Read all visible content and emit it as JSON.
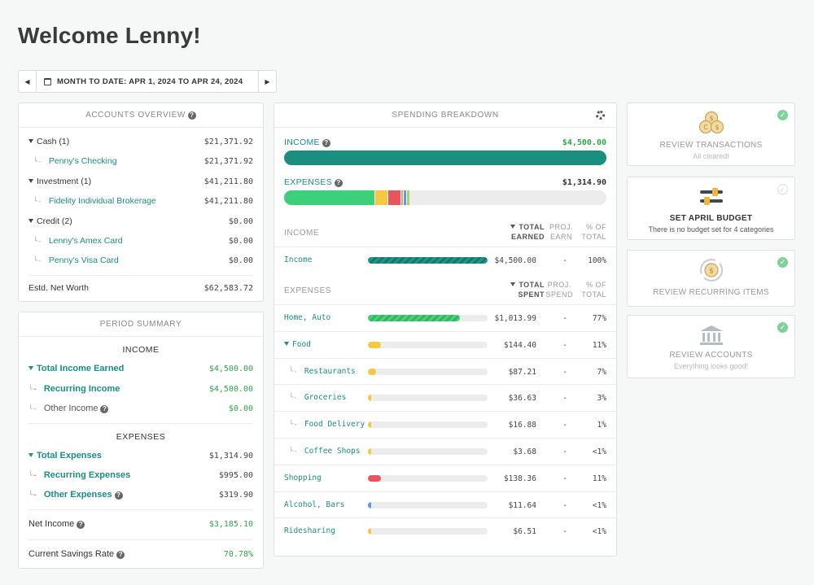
{
  "greeting": "Welcome Lenny!",
  "date_range": "MONTH TO DATE: APR 1, 2024 TO APR 24, 2024",
  "accounts": {
    "title": "ACCOUNTS OVERVIEW",
    "rows": [
      {
        "label": "Cash (1)",
        "value": "$21,371.92"
      },
      {
        "label": "Penny's Checking",
        "value": "$21,371.92"
      },
      {
        "label": "Investment (1)",
        "value": "$41,211.80"
      },
      {
        "label": "Fidelity Individual Brokerage",
        "value": "$41,211.80"
      },
      {
        "label": "Credit (2)",
        "value": "$0.00"
      },
      {
        "label": "Lenny's Amex Card",
        "value": "$0.00"
      },
      {
        "label": "Penny's Visa Card",
        "value": "$0.00"
      }
    ],
    "net_worth_label": "Estd. Net Worth",
    "net_worth_value": "$62,583.72"
  },
  "period": {
    "title": "PERIOD SUMMARY",
    "income_head": "INCOME",
    "total_income_label": "Total Income Earned",
    "total_income_value": "$4,500.00",
    "recurring_income_label": "Recurring Income",
    "recurring_income_value": "$4,500.00",
    "other_income_label": "Other Income",
    "other_income_value": "$0.00",
    "expenses_head": "EXPENSES",
    "total_expenses_label": "Total Expenses",
    "total_expenses_value": "$1,314.90",
    "recurring_expenses_label": "Recurring Expenses",
    "recurring_expenses_value": "$995.00",
    "other_expenses_label": "Other Expenses",
    "other_expenses_value": "$319.90",
    "net_income_label": "Net Income",
    "net_income_value": "$3,185.10",
    "savings_label": "Current Savings Rate",
    "savings_value": "70.78%"
  },
  "spending": {
    "title": "SPENDING BREAKDOWN",
    "income_label": "INCOME",
    "income_value": "$4,500.00",
    "expenses_label": "EXPENSES",
    "expenses_value": "$1,314.90",
    "expense_segments": [
      {
        "color": "#3ecf7a",
        "pct": 0.28
      },
      {
        "color": "#f5c842",
        "pct": 0.04
      },
      {
        "color": "#e8555e",
        "pct": 0.04
      },
      {
        "color": "#f39a6b",
        "pct": 0.01
      },
      {
        "color": "#5c9be0",
        "pct": 0.01
      },
      {
        "color": "#a9d65e",
        "pct": 0.01
      }
    ],
    "income_head": {
      "col1": "INCOME",
      "col2a": "TOTAL",
      "col2b": "EARNED",
      "col3a": "PROJ.",
      "col3b": "EARN",
      "col4a": "% OF",
      "col4b": "TOTAL"
    },
    "income_rows": [
      {
        "name": "Income",
        "amount": "$4,500.00",
        "proj": "-",
        "pct": "100%",
        "fill": 1.0,
        "color": "teal"
      }
    ],
    "expense_head": {
      "col1": "EXPENSES",
      "col2a": "TOTAL",
      "col2b": "SPENT",
      "col3a": "PROJ.",
      "col3b": "SPEND",
      "col4a": "% OF",
      "col4b": "TOTAL"
    },
    "expense_rows": [
      {
        "name": "Home, Auto",
        "amount": "$1,013.99",
        "proj": "-",
        "pct": "77%",
        "fill": 0.77,
        "color": "green"
      },
      {
        "name": "Food",
        "amount": "$144.40",
        "proj": "-",
        "pct": "11%",
        "fill": 0.11,
        "color": "#f5c842"
      },
      {
        "name": "Restaurants",
        "amount": "$87.21",
        "proj": "-",
        "pct": "7%",
        "fill": 0.07,
        "color": "#f5c842"
      },
      {
        "name": "Groceries",
        "amount": "$36.63",
        "proj": "-",
        "pct": "3%",
        "fill": 0.03,
        "color": "#f5c842"
      },
      {
        "name": "Food Delivery",
        "amount": "$16.88",
        "proj": "-",
        "pct": "1%",
        "fill": 0.01,
        "color": "#f5c842"
      },
      {
        "name": "Coffee Shops",
        "amount": "$3.68",
        "proj": "-",
        "pct": "<1%",
        "fill": 0.005,
        "color": "#f5c842"
      },
      {
        "name": "Shopping",
        "amount": "$138.36",
        "proj": "-",
        "pct": "11%",
        "fill": 0.11,
        "color": "#e8555e"
      },
      {
        "name": "Alcohol, Bars",
        "amount": "$11.64",
        "proj": "-",
        "pct": "<1%",
        "fill": 0.01,
        "color": "#5c9be0"
      },
      {
        "name": "Ridesharing",
        "amount": "$6.51",
        "proj": "-",
        "pct": "<1%",
        "fill": 0.005,
        "color": "#f5c842"
      }
    ]
  },
  "cards": [
    {
      "title": "REVIEW TRANSACTIONS",
      "sub": "All cleared!",
      "icon": "coins-icon",
      "done": true
    },
    {
      "title": "SET APRIL BUDGET",
      "sub": "There is no budget set for 4 categories",
      "icon": "sliders-icon",
      "done": false
    },
    {
      "title": "REVIEW RECURRING ITEMS",
      "sub": "",
      "icon": "recurring-icon",
      "done": true
    },
    {
      "title": "REVIEW ACCOUNTS",
      "sub": "Everything looks good!",
      "icon": "bank-icon",
      "done": true
    }
  ]
}
